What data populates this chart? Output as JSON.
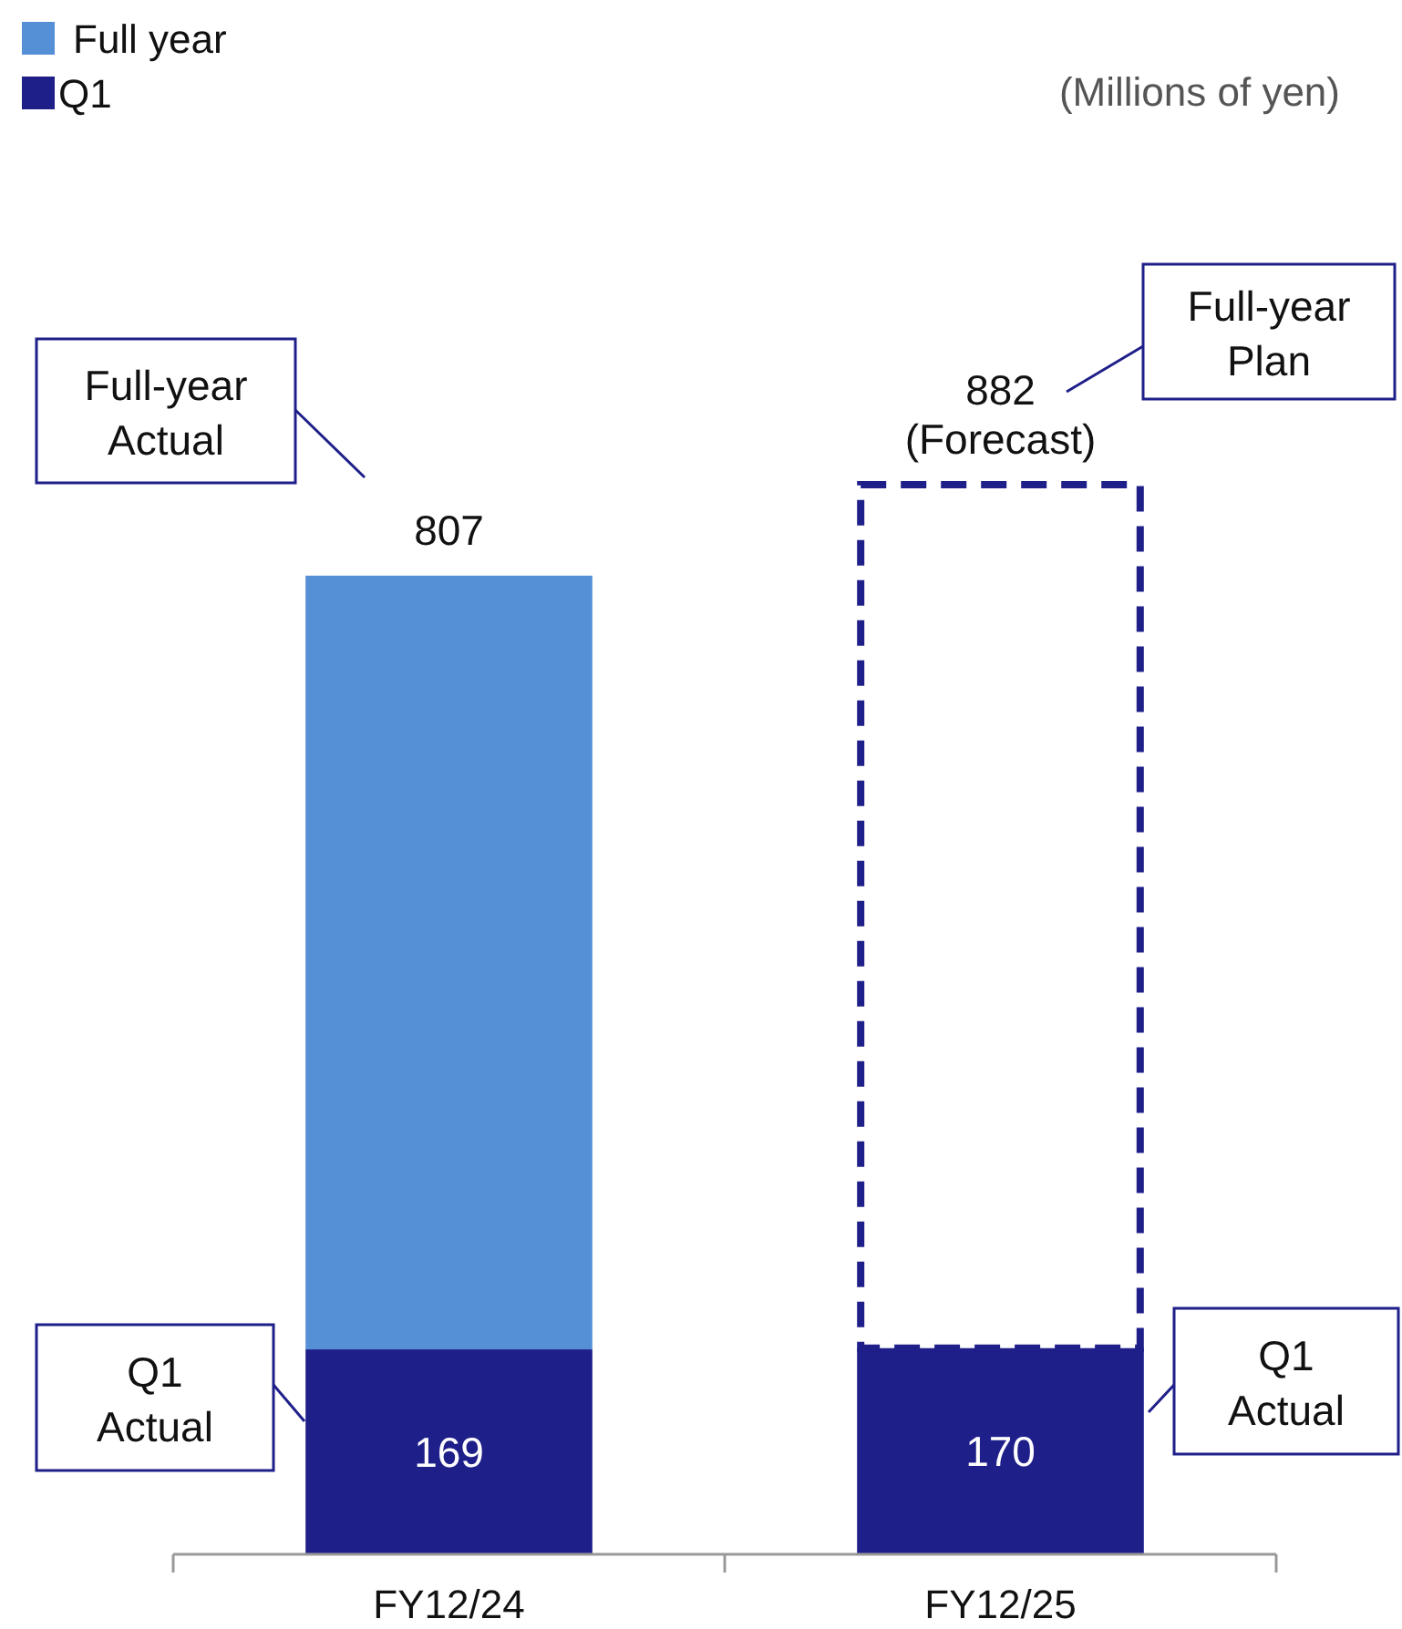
{
  "chart_data": {
    "type": "bar",
    "stacked": true,
    "categories": [
      "FY12/24",
      "FY12/25"
    ],
    "series": [
      {
        "name": "Q1",
        "color": "#1f1f8a",
        "values": [
          169,
          170
        ],
        "value_labels": [
          "169",
          "170"
        ]
      },
      {
        "name": "Full year",
        "color": "#5590d6",
        "values": [
          638,
          null
        ]
      },
      {
        "color": "#1f1f8a",
        "values": [
          null,
          712
        ],
        "line_style": "dashed"
      }
    ],
    "totals": [
      "807",
      "882"
    ],
    "annotations": [
      "(Millions of yen)",
      "Full-year Actual",
      "Full-year Plan",
      "Q1 Actual",
      "Q1 Actual",
      "(Forecast)"
    ],
    "legend": "top left"
  }
}
